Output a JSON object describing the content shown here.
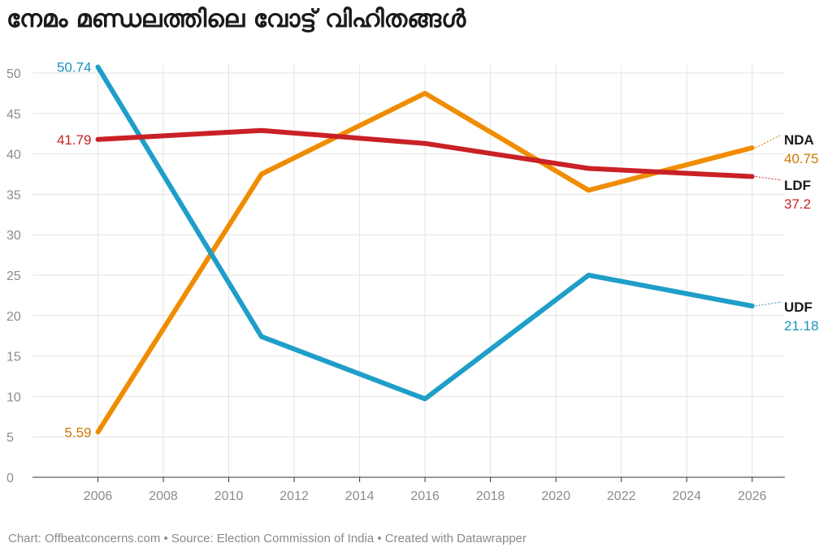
{
  "title": "നേമം മണ്ഡലത്തിലെ വോട്ട് വിഹിതങ്ങൾ",
  "footer": "Chart: Offbeatconcerns.com • Source: Election Commission of India • Created with Datawrapper",
  "chart_data": {
    "type": "line",
    "title": "നേമം മണ്ഡലത്തിലെ വോട്ട് വിഹിതങ്ങൾ",
    "xlabel": "",
    "ylabel": "",
    "xlim": [
      2004,
      2027
    ],
    "ylim": [
      0,
      50
    ],
    "x_ticks": [
      "2006",
      "2008",
      "2010",
      "2012",
      "2014",
      "2016",
      "2018",
      "2020",
      "2022",
      "2024",
      "2026"
    ],
    "y_ticks": [
      "0",
      "5",
      "10",
      "15",
      "20",
      "25",
      "30",
      "35",
      "40",
      "45",
      "50"
    ],
    "grid": true,
    "series": [
      {
        "name": "UDF",
        "color": "#1f9ec9",
        "x": [
          2006,
          2011,
          2016,
          2021,
          2026
        ],
        "values": [
          50.74,
          17.4,
          9.7,
          25.0,
          21.18
        ],
        "start_label": "50.74",
        "end_label": "21.18"
      },
      {
        "name": "LDF",
        "color": "#c92126",
        "x": [
          2006,
          2011,
          2016,
          2021,
          2026
        ],
        "values": [
          41.79,
          42.9,
          41.3,
          38.2,
          37.2
        ],
        "start_label": "41.79",
        "end_label": "37.2"
      },
      {
        "name": "NDA",
        "color": "#f08c00",
        "x": [
          2006,
          2011,
          2016,
          2021,
          2026
        ],
        "values": [
          5.59,
          37.5,
          47.5,
          35.5,
          40.75
        ],
        "start_label": "5.59",
        "end_label": "40.75"
      }
    ]
  },
  "label_colors": {
    "UDF": "#1a93bd",
    "LDF": "#c92126",
    "NDA": "#cc7700"
  }
}
